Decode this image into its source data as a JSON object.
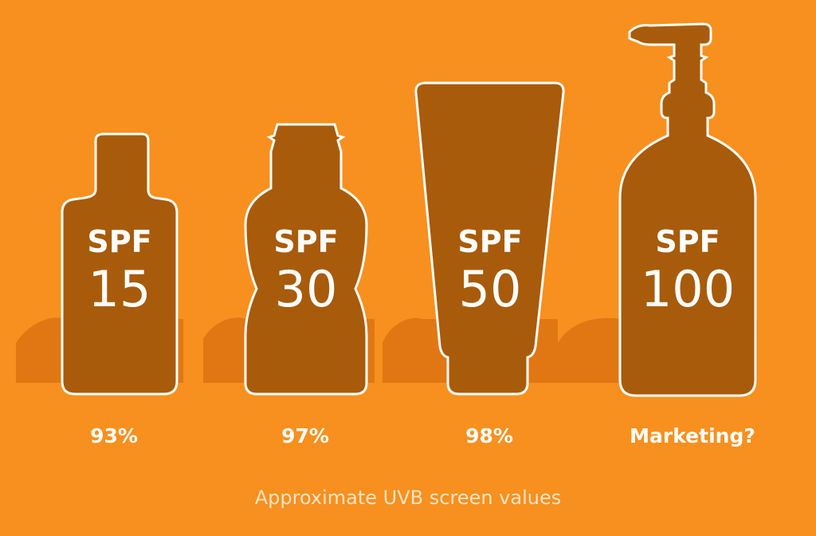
{
  "colors": {
    "background": "#F7901E",
    "bottle_fill": "#A85B0A",
    "outline": "#FFFFFF",
    "shadow": "#DC7310",
    "text": "#FFFFFF",
    "footer_text": "#FCE3C4"
  },
  "products": [
    {
      "spf_label": "SPF",
      "spf_value": "15",
      "caption": "93%",
      "container": "flask-bottle-icon"
    },
    {
      "spf_label": "SPF",
      "spf_value": "30",
      "caption": "97%",
      "container": "flip-cap-bottle-icon"
    },
    {
      "spf_label": "SPF",
      "spf_value": "50",
      "caption": "98%",
      "container": "squeeze-tube-icon"
    },
    {
      "spf_label": "SPF",
      "spf_value": "100",
      "caption": "Marketing?",
      "container": "pump-bottle-icon"
    }
  ],
  "footer": {
    "text": "Approximate UVB screen values"
  }
}
